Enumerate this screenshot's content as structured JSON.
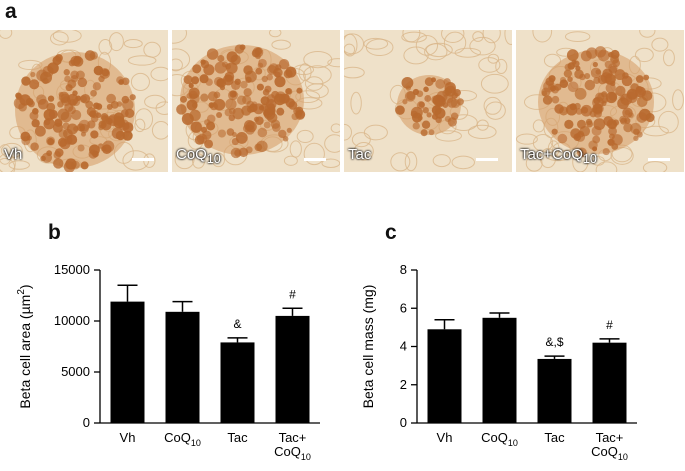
{
  "panels": {
    "a": "a",
    "b": "b",
    "c": "c"
  },
  "micrographs": [
    {
      "label": "Vh",
      "label_sub": ""
    },
    {
      "label": "CoQ",
      "label_sub": "10"
    },
    {
      "label": "Tac",
      "label_sub": ""
    },
    {
      "label": "Tac+CoQ",
      "label_sub": "10"
    }
  ],
  "colors": {
    "tissue_background": "#efe1c9",
    "stain": "#b8692e",
    "bars": "#000000"
  },
  "chart_data": [
    {
      "type": "bar",
      "panel": "b",
      "categories": [
        {
          "main": "Vh",
          "line2": "",
          "sub": ""
        },
        {
          "main": "CoQ",
          "line2": "",
          "sub": "10"
        },
        {
          "main": "Tac",
          "line2": "",
          "sub": ""
        },
        {
          "main": "Tac+",
          "line2": "CoQ",
          "sub": "10"
        }
      ],
      "values": [
        11900,
        10900,
        7900,
        10500
      ],
      "errors": [
        1600,
        1000,
        450,
        750
      ],
      "annotations": [
        "",
        "",
        "&",
        "#"
      ],
      "ylabel_pre": "Beta cell area (µm",
      "ylabel_sup": "2",
      "ylabel_post": ")",
      "ylim": [
        0,
        15000
      ],
      "yticks": [
        0,
        5000,
        10000,
        15000
      ]
    },
    {
      "type": "bar",
      "panel": "c",
      "categories": [
        {
          "main": "Vh",
          "line2": "",
          "sub": ""
        },
        {
          "main": "CoQ",
          "line2": "",
          "sub": "10"
        },
        {
          "main": "Tac",
          "line2": "",
          "sub": ""
        },
        {
          "main": "Tac+",
          "line2": "CoQ",
          "sub": "10"
        }
      ],
      "values": [
        4.9,
        5.5,
        3.35,
        4.2
      ],
      "errors": [
        0.5,
        0.25,
        0.15,
        0.2
      ],
      "annotations": [
        "",
        "",
        "&,$",
        "#"
      ],
      "ylabel_pre": "Beta cell mass (mg)",
      "ylabel_sup": "",
      "ylabel_post": "",
      "ylim": [
        0,
        8
      ],
      "yticks": [
        0,
        2,
        4,
        6,
        8
      ]
    }
  ]
}
